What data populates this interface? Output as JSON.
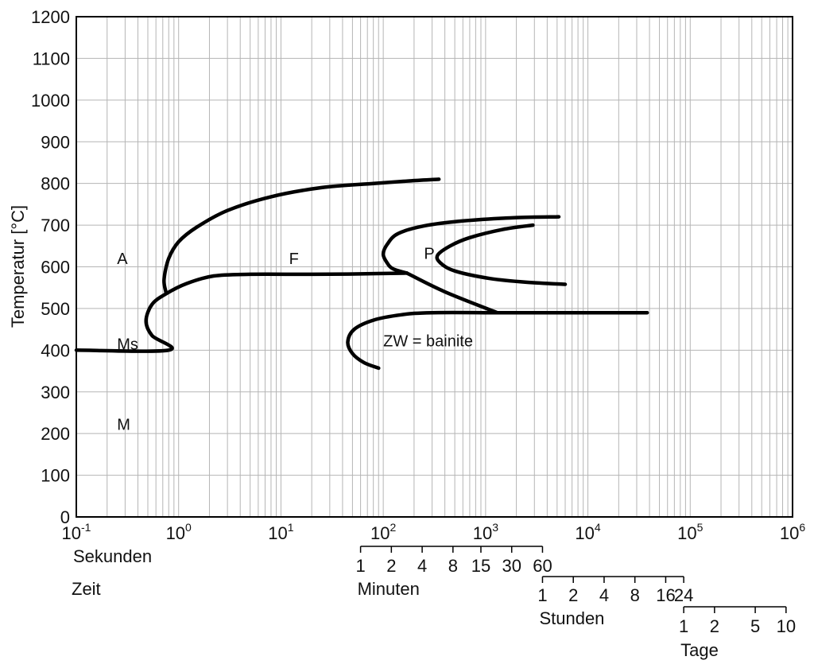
{
  "chart_data": {
    "type": "line",
    "title": "",
    "xscale": "log",
    "xlim": [
      0.1,
      1000000
    ],
    "ylim": [
      0,
      1200
    ],
    "ylabel": "Temperatur  [°C]",
    "grid": true,
    "y_ticks": [
      "0",
      "100",
      "200",
      "300",
      "400",
      "500",
      "600",
      "700",
      "800",
      "900",
      "1000",
      "1100",
      "1200"
    ],
    "x_ticks": [
      {
        "base": "10",
        "exp": "-1"
      },
      {
        "base": "10",
        "exp": "0"
      },
      {
        "base": "10",
        "exp": "1"
      },
      {
        "base": "10",
        "exp": "2"
      },
      {
        "base": "10",
        "exp": "3"
      },
      {
        "base": "10",
        "exp": "4"
      },
      {
        "base": "10",
        "exp": "5"
      },
      {
        "base": "10",
        "exp": "6"
      }
    ],
    "time_scales": [
      {
        "unit": "Sekunden",
        "ticks": []
      },
      {
        "unit": "Minuten",
        "ticks": [
          {
            "label": "1",
            "t": 60
          },
          {
            "label": "2",
            "t": 120
          },
          {
            "label": "4",
            "t": 240
          },
          {
            "label": "8",
            "t": 480
          },
          {
            "label": "15",
            "t": 900
          },
          {
            "label": "30",
            "t": 1800
          },
          {
            "label": "60",
            "t": 3600
          }
        ]
      },
      {
        "unit": "Stunden",
        "ticks": [
          {
            "label": "1",
            "t": 3600
          },
          {
            "label": "2",
            "t": 7200
          },
          {
            "label": "4",
            "t": 14400
          },
          {
            "label": "8",
            "t": 28800
          },
          {
            "label": "16",
            "t": 57600
          },
          {
            "label": "24",
            "t": 86400
          }
        ]
      },
      {
        "unit": "Tage",
        "ticks": [
          {
            "label": "1",
            "t": 86400
          },
          {
            "label": "2",
            "t": 172800
          },
          {
            "label": "5",
            "t": 432000
          },
          {
            "label": "10",
            "t": 864000
          }
        ]
      }
    ],
    "zeit_label": "Zeit",
    "annotations": [
      {
        "text": "A",
        "x": 0.25,
        "y": 620
      },
      {
        "text": "F",
        "x": 12,
        "y": 620
      },
      {
        "text": "P",
        "x": 250,
        "y": 632
      },
      {
        "text": "Ms",
        "x": 0.25,
        "y": 415
      },
      {
        "text": "M",
        "x": 0.25,
        "y": 222
      },
      {
        "text": "ZW = bainite",
        "x": 100,
        "y": 423
      }
    ],
    "series": [
      {
        "points": [
          [
            0.1,
            400
          ],
          [
            0.8,
            400
          ],
          [
            0.55,
            435
          ],
          [
            0.48,
            470
          ],
          [
            0.55,
            510
          ],
          [
            0.75,
            535
          ],
          [
            1.2,
            560
          ],
          [
            2.2,
            578
          ],
          [
            5,
            582
          ],
          [
            20,
            582
          ],
          [
            60,
            583
          ],
          [
            170,
            585
          ]
        ]
      },
      {
        "points": [
          [
            0.75,
            540
          ],
          [
            0.72,
            570
          ],
          [
            0.8,
            620
          ],
          [
            1.0,
            660
          ],
          [
            1.5,
            695
          ],
          [
            3,
            735
          ],
          [
            8,
            768
          ],
          [
            25,
            790
          ],
          [
            80,
            800
          ],
          [
            180,
            806
          ],
          [
            350,
            810
          ]
        ]
      },
      {
        "points": [
          [
            170,
            585
          ],
          [
            400,
            540
          ],
          [
            1300,
            490
          ]
        ]
      },
      {
        "points": [
          [
            2900,
            700
          ],
          [
            1500,
            690
          ],
          [
            700,
            670
          ],
          [
            450,
            650
          ],
          [
            340,
            628
          ],
          [
            360,
            610
          ],
          [
            500,
            590
          ],
          [
            1100,
            572
          ],
          [
            2500,
            563
          ],
          [
            6000,
            558
          ]
        ]
      },
      {
        "points": [
          [
            5200,
            720
          ],
          [
            2000,
            718
          ],
          [
            600,
            710
          ],
          [
            250,
            698
          ],
          [
            140,
            680
          ],
          [
            110,
            655
          ],
          [
            100,
            630
          ],
          [
            110,
            608
          ],
          [
            125,
            595
          ],
          [
            170,
            585
          ]
        ]
      },
      {
        "points": [
          [
            38000,
            490
          ],
          [
            5000,
            490
          ],
          [
            1300,
            490
          ],
          [
            300,
            490
          ],
          [
            150,
            485
          ],
          [
            80,
            472
          ],
          [
            52,
            450
          ],
          [
            45,
            420
          ],
          [
            50,
            392
          ],
          [
            65,
            370
          ],
          [
            90,
            357
          ]
        ]
      }
    ]
  }
}
